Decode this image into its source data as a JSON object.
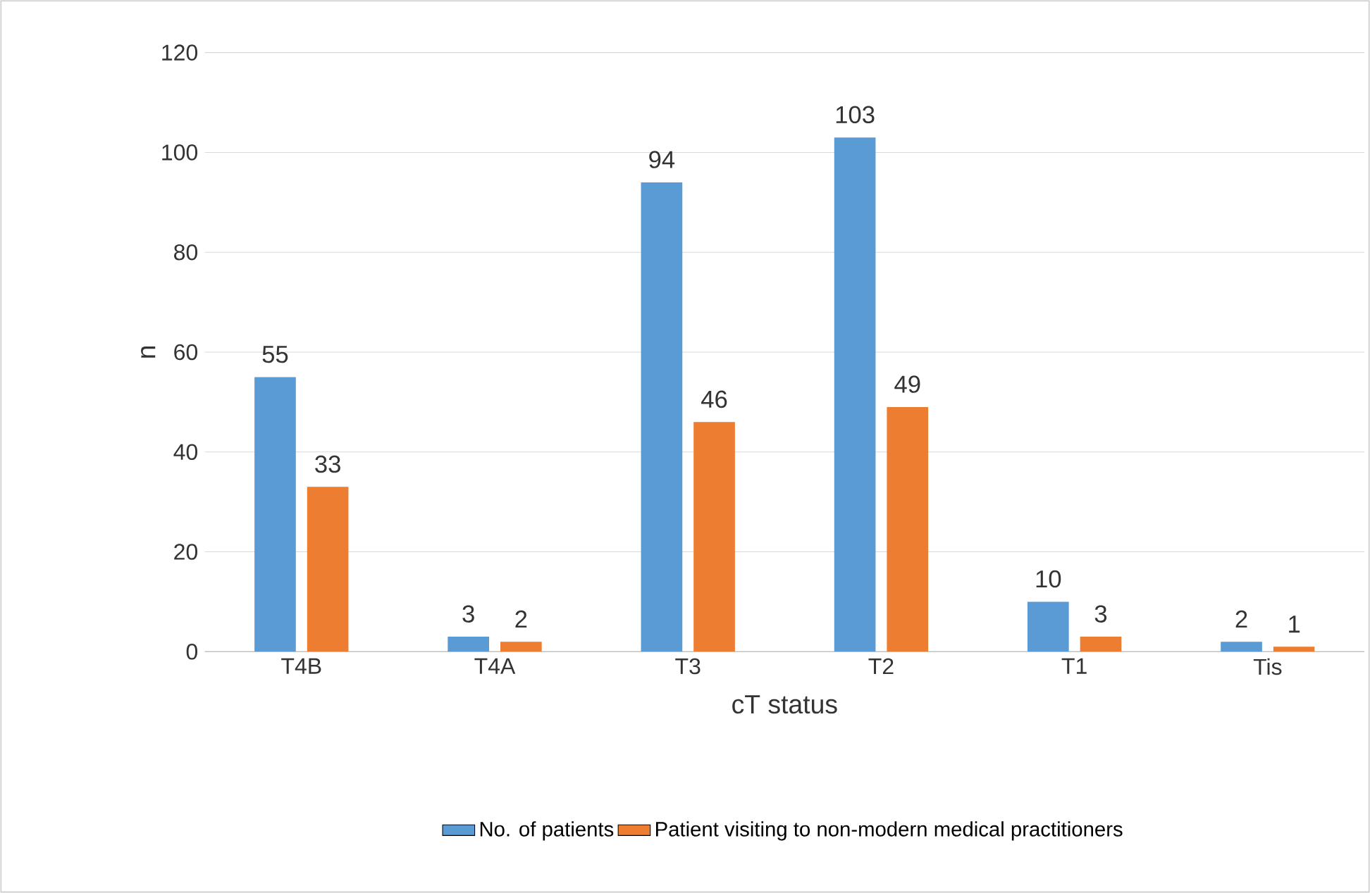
{
  "chart_data": {
    "type": "bar",
    "xlabel": "cT status",
    "ylabel": "n",
    "categories": [
      "T4B",
      "T4A",
      "T3",
      "T2",
      "T1",
      "Tis"
    ],
    "series": [
      {
        "name": "No. of patients",
        "color": "#5b9bd5",
        "values": [
          55,
          3,
          94,
          103,
          10,
          2
        ]
      },
      {
        "name": "Patient visiting to non-modern medical practitioners",
        "color": "#ed7d31",
        "values": [
          33,
          2,
          46,
          49,
          3,
          1
        ]
      }
    ],
    "ylim": [
      0,
      120
    ],
    "yticks": [
      0,
      20,
      40,
      60,
      80,
      100,
      120
    ],
    "grid": "y",
    "legend": "bottom",
    "data_labels": true
  }
}
